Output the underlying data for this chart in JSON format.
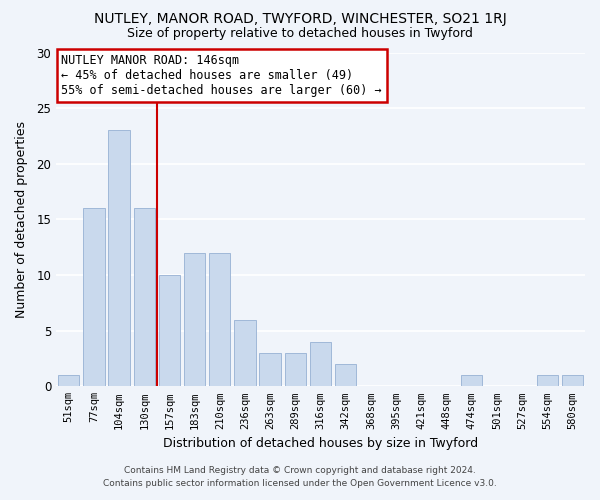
{
  "title": "NUTLEY, MANOR ROAD, TWYFORD, WINCHESTER, SO21 1RJ",
  "subtitle": "Size of property relative to detached houses in Twyford",
  "xlabel": "Distribution of detached houses by size in Twyford",
  "ylabel": "Number of detached properties",
  "bar_labels": [
    "51sqm",
    "77sqm",
    "104sqm",
    "130sqm",
    "157sqm",
    "183sqm",
    "210sqm",
    "236sqm",
    "263sqm",
    "289sqm",
    "316sqm",
    "342sqm",
    "368sqm",
    "395sqm",
    "421sqm",
    "448sqm",
    "474sqm",
    "501sqm",
    "527sqm",
    "554sqm",
    "580sqm"
  ],
  "bar_values": [
    1,
    16,
    23,
    16,
    10,
    12,
    12,
    6,
    3,
    3,
    4,
    2,
    0,
    0,
    0,
    0,
    1,
    0,
    0,
    1,
    1
  ],
  "bar_color": "#c9d9ed",
  "bar_edge_color": "#a0b8d8",
  "bg_color": "#f0f4fa",
  "grid_color": "#ffffff",
  "ylim": [
    0,
    30
  ],
  "yticks": [
    0,
    5,
    10,
    15,
    20,
    25,
    30
  ],
  "annotation_line_color": "#cc0000",
  "annotation_box_text": "NUTLEY MANOR ROAD: 146sqm\n← 45% of detached houses are smaller (49)\n55% of semi-detached houses are larger (60) →",
  "annotation_box_color": "#ffffff",
  "annotation_box_edge_color": "#cc0000",
  "footer_line1": "Contains HM Land Registry data © Crown copyright and database right 2024.",
  "footer_line2": "Contains public sector information licensed under the Open Government Licence v3.0."
}
